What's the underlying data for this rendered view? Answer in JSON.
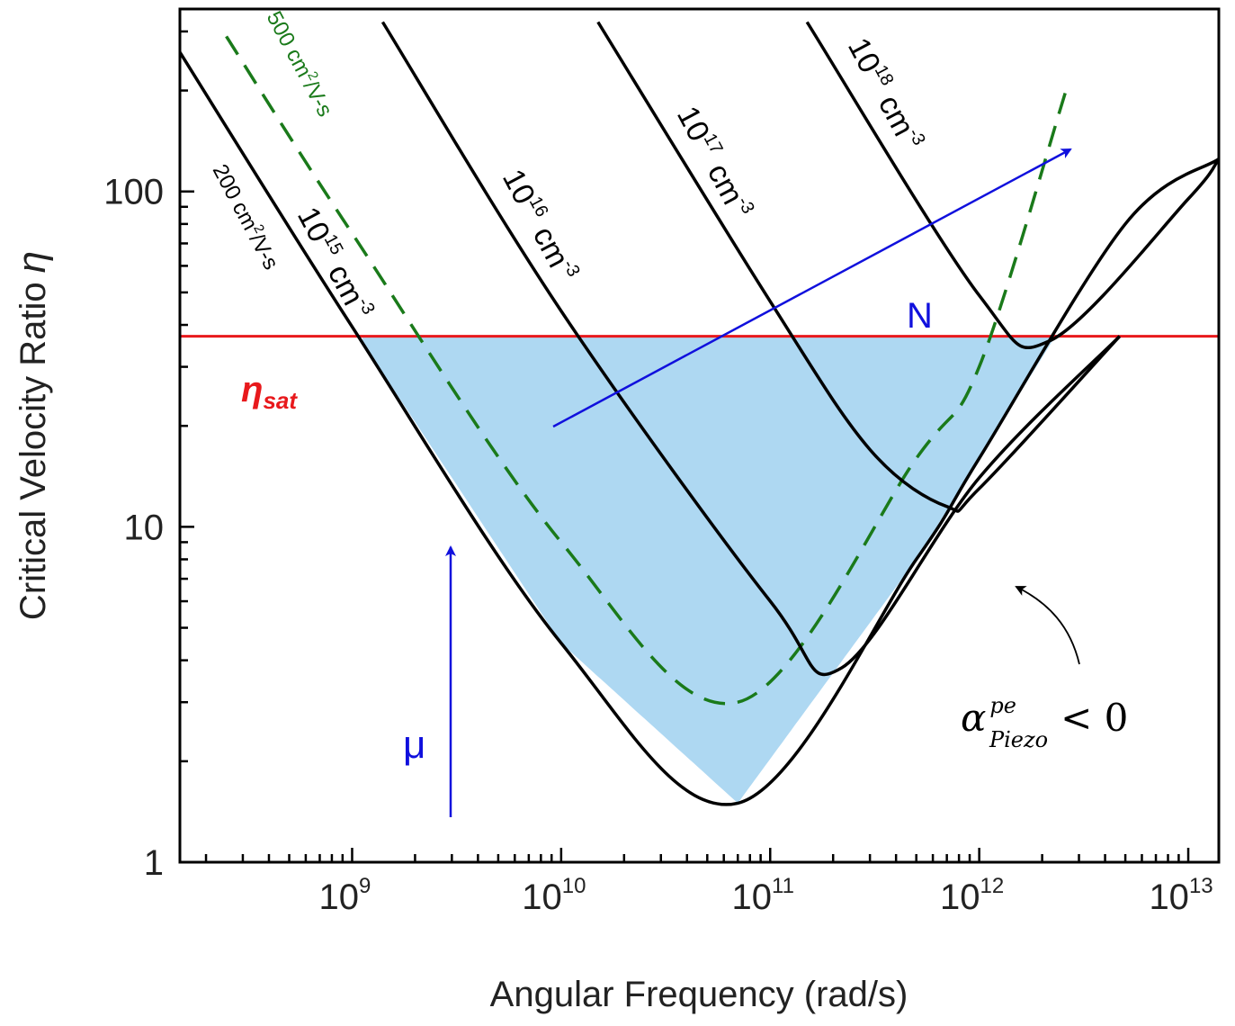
{
  "chart_data": {
    "type": "line",
    "title": "",
    "xlabel": "Angular Frequency (rad/s)",
    "ylabel": "Critical Velocity Ratio",
    "ylabel_symbol": "η",
    "x_scale": "log",
    "y_scale": "log",
    "xlim": [
      150000000.0,
      14000000000000.0
    ],
    "ylim": [
      1,
      350
    ],
    "x_ticks": [
      {
        "value": 1000000000.0,
        "base": "10",
        "exp": "9"
      },
      {
        "value": 10000000000.0,
        "base": "10",
        "exp": "10"
      },
      {
        "value": 100000000000.0,
        "base": "10",
        "exp": "11"
      },
      {
        "value": 1000000000000.0,
        "base": "10",
        "exp": "12"
      },
      {
        "value": 10000000000000.0,
        "base": "10",
        "exp": "13"
      }
    ],
    "y_ticks": [
      {
        "value": 1,
        "label": "1"
      },
      {
        "value": 10,
        "label": "10"
      },
      {
        "value": 100,
        "label": "100"
      }
    ],
    "grid": false,
    "eta_sat": {
      "value": 37,
      "label": "η",
      "subscript": "sat",
      "color": "#e8191c"
    },
    "shaded_region": {
      "color": "#aed8f2",
      "description_label": {
        "alpha": "α",
        "sup": "pe",
        "sub": "Piezo",
        "rel": "< 0"
      }
    },
    "series": [
      {
        "name": "200 cm²/V-s",
        "style": "solid",
        "color": "#000000",
        "x": [
          150000000.0,
          1000000000.0,
          10000000000.0,
          70000000000.0,
          500000000000.0,
          1000000000000.0,
          5000000000000.0,
          14000000000000.0
        ],
        "y": [
          260,
          39.5,
          4.5,
          1.5,
          8,
          16,
          80,
          125
        ]
      },
      {
        "name": "500 cm²/V-s",
        "style": "dashed",
        "color": "#1a7a1a",
        "x": [
          250000000.0,
          1000000000.0,
          10000000000.0,
          70000000000.0,
          500000000000.0,
          1000000000000.0,
          2600000000000.0
        ],
        "y": [
          290,
          75,
          9,
          3,
          16,
          30,
          200
        ]
      },
      {
        "name": "10¹⁶ cm⁻³",
        "style": "solid",
        "color": "#000000",
        "x": [
          1400000000.0,
          10000000000.0,
          100000000000.0,
          220000000000.0,
          1000000000000.0,
          4700000000000.0
        ],
        "y": [
          320,
          44,
          6,
          3.8,
          14,
          37
        ]
      },
      {
        "name": "10¹⁷ cm⁻³",
        "style": "solid",
        "color": "#000000",
        "x": [
          15000000000.0,
          100000000000.0,
          300000000000.0,
          700000000000.0,
          1000000000000.0,
          4700000000000.0
        ],
        "y": [
          320,
          47,
          17,
          11.5,
          13,
          37
        ]
      },
      {
        "name": "10¹⁸ cm⁻³",
        "style": "solid",
        "color": "#000000",
        "x": [
          150000000000.0,
          1000000000000.0,
          2200000000000.0,
          10000000000000.0,
          14000000000000.0
        ],
        "y": [
          320,
          49,
          36,
          95,
          125
        ]
      }
    ],
    "annotations": {
      "mobility_200": {
        "pre": "200 cm",
        "sup": "2",
        "post": "/V-s",
        "color": "#000000"
      },
      "mobility_500": {
        "pre": "500 cm",
        "sup": "2",
        "post": "/V-s",
        "color": "#1a7a1a"
      },
      "conc_15": {
        "base": "10",
        "exp": "15",
        "unit": "cm",
        "unit_exp": "-3"
      },
      "conc_16": {
        "base": "10",
        "exp": "16",
        "unit": "cm",
        "unit_exp": "-3"
      },
      "conc_17": {
        "base": "10",
        "exp": "17",
        "unit": "cm",
        "unit_exp": "-3"
      },
      "conc_18": {
        "base": "10",
        "exp": "18",
        "unit": "cm",
        "unit_exp": "-3"
      },
      "arrow_N": {
        "label": "N",
        "color": "#1010dd"
      },
      "arrow_mu": {
        "label": "μ",
        "color": "#1010dd"
      }
    }
  }
}
